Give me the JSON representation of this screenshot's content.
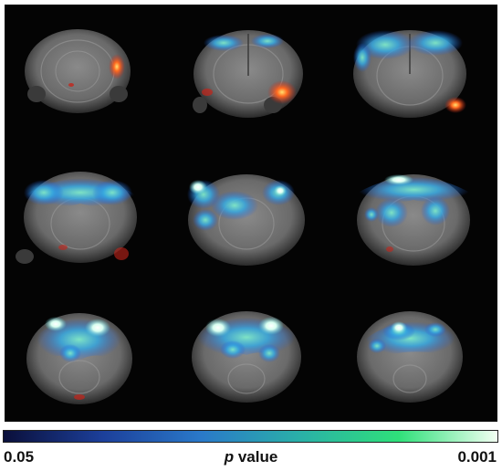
{
  "figure": {
    "description_grid": "3x3 coronal brain MRI slices with statistical overlay",
    "colorbar": {
      "min_label": "0.05",
      "max_label": "0.001",
      "title_p": "p",
      "title_rest": " value",
      "colors": [
        "#0a0f3a",
        "#1c3f9a",
        "#2a79c9",
        "#2ab0a8",
        "#2fe07a",
        "#f2fff2"
      ]
    },
    "overlay_colors": {
      "negative": [
        "#1e5adc",
        "#36b4d8",
        "#7fe8c8",
        "#ffffff"
      ],
      "positive": [
        "#c4241a",
        "#ff6a20",
        "#ffe070"
      ]
    }
  }
}
